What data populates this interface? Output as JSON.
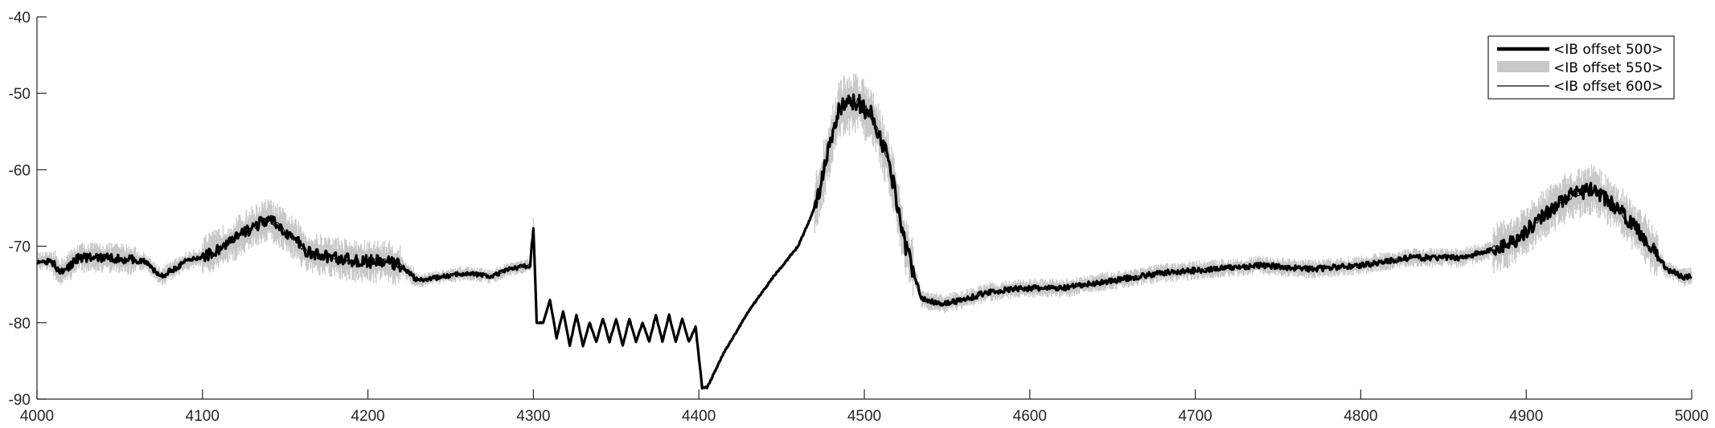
{
  "chart_data": {
    "type": "line",
    "title": "",
    "xlabel": "",
    "ylabel": "",
    "xlim": [
      4000,
      5000
    ],
    "ylim": [
      -90,
      -40
    ],
    "xticks": [
      4000,
      4100,
      4200,
      4300,
      4400,
      4500,
      4600,
      4700,
      4800,
      4900,
      5000
    ],
    "yticks": [
      -90,
      -80,
      -70,
      -60,
      -50,
      -40
    ],
    "xtick_labels": [
      "4000",
      "4100",
      "4200",
      "4300",
      "4400",
      "4500",
      "4600",
      "4700",
      "4800",
      "4900",
      "5000"
    ],
    "ytick_labels": [
      "-90",
      "-80",
      "-70",
      "-60",
      "-50",
      "-40"
    ],
    "grid": false,
    "legend": {
      "placement": "top-right"
    },
    "series": [
      {
        "name": "<IB offset 500>",
        "style": "thick-black-line",
        "color": "#000000",
        "x": [
          4000,
          4008,
          4015,
          4025,
          4040,
          4055,
          4065,
          4075,
          4090,
          4105,
          4120,
          4130,
          4140,
          4150,
          4165,
          4180,
          4195,
          4210,
          4220,
          4230,
          4245,
          4260,
          4275,
          4285,
          4298,
          4300,
          4302,
          4306,
          4310,
          4314,
          4318,
          4322,
          4326,
          4330,
          4334,
          4338,
          4342,
          4346,
          4350,
          4354,
          4358,
          4362,
          4366,
          4370,
          4374,
          4378,
          4382,
          4386,
          4390,
          4394,
          4398,
          4402,
          4405,
          4415,
          4430,
          4445,
          4460,
          4470,
          4478,
          4485,
          4495,
          4505,
          4515,
          4525,
          4535,
          4548,
          4560,
          4575,
          4595,
          4620,
          4650,
          4680,
          4710,
          4740,
          4770,
          4800,
          4830,
          4860,
          4880,
          4895,
          4910,
          4925,
          4940,
          4955,
          4970,
          4985,
          4995,
          5000
        ],
        "y": [
          -72,
          -72,
          -73.5,
          -71.5,
          -71.5,
          -71.7,
          -72,
          -74,
          -72,
          -71,
          -69,
          -67.5,
          -66.5,
          -68,
          -71,
          -71.5,
          -72,
          -72,
          -72.5,
          -74.5,
          -74,
          -73.5,
          -74,
          -73,
          -72.5,
          -67.5,
          -80,
          -80,
          -77,
          -82,
          -78.5,
          -83,
          -79,
          -83,
          -80,
          -82.5,
          -79.5,
          -82.5,
          -79.5,
          -83,
          -79.5,
          -82.5,
          -80,
          -82.5,
          -79,
          -82.5,
          -79,
          -82.5,
          -79.5,
          -82.5,
          -80.5,
          -88.5,
          -88.5,
          -84,
          -78.5,
          -74,
          -70,
          -65,
          -58,
          -52,
          -51,
          -53,
          -59,
          -70,
          -77,
          -77.5,
          -77,
          -76,
          -75.5,
          -75.5,
          -74.5,
          -73.5,
          -73,
          -72.5,
          -73,
          -72.5,
          -71.5,
          -71.5,
          -70.5,
          -69,
          -66,
          -63.5,
          -62.5,
          -65,
          -68.5,
          -73,
          -74,
          -74
        ]
      },
      {
        "name": "<IB offset 550>",
        "style": "grey-noisy-band",
        "color": "#c8c8c8",
        "x": [
          4000,
          4300,
          4400,
          5000
        ],
        "y": [
          -72,
          -72.5,
          -80.5,
          -74
        ]
      },
      {
        "name": "<IB offset 600>",
        "style": "thin-black-line",
        "color": "#000000",
        "x": [
          4000,
          4300,
          4400,
          5000
        ],
        "y": [
          -72,
          -72.5,
          -80.5,
          -74
        ]
      }
    ]
  }
}
